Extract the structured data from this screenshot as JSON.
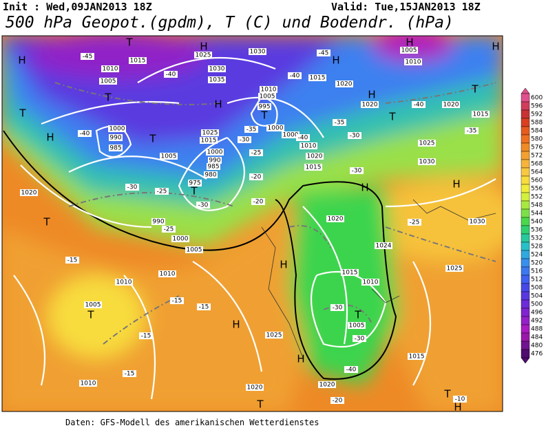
{
  "header": {
    "init": "Init : Wed,09JAN2013 18Z",
    "valid": "Valid: Tue,15JAN2013 18Z",
    "title": "500 hPa Geopot.(gpdm), T (C) und Bodendr. (hPa)"
  },
  "colorbar": {
    "levels": [
      {
        "value": 600,
        "color": "#e0508c"
      },
      {
        "value": 596,
        "color": "#d03c5a"
      },
      {
        "value": 592,
        "color": "#c83232"
      },
      {
        "value": 588,
        "color": "#d94020"
      },
      {
        "value": 584,
        "color": "#e65a1e"
      },
      {
        "value": 580,
        "color": "#ee7020"
      },
      {
        "value": 576,
        "color": "#f08a24"
      },
      {
        "value": 572,
        "color": "#f4a030"
      },
      {
        "value": 568,
        "color": "#f6b43a"
      },
      {
        "value": 564,
        "color": "#f8c840"
      },
      {
        "value": 560,
        "color": "#f8dc3e"
      },
      {
        "value": 556,
        "color": "#f0ec3a"
      },
      {
        "value": 552,
        "color": "#d2f03c"
      },
      {
        "value": 548,
        "color": "#a8e840"
      },
      {
        "value": 544,
        "color": "#7ce048"
      },
      {
        "value": 540,
        "color": "#4cd84c"
      },
      {
        "value": 536,
        "color": "#30d070"
      },
      {
        "value": 532,
        "color": "#28c89c"
      },
      {
        "value": 528,
        "color": "#28c0c8"
      },
      {
        "value": 524,
        "color": "#30a8e0"
      },
      {
        "value": 520,
        "color": "#3890ec"
      },
      {
        "value": 516,
        "color": "#3c78f0"
      },
      {
        "value": 512,
        "color": "#4060f0"
      },
      {
        "value": 508,
        "color": "#4848e8"
      },
      {
        "value": 504,
        "color": "#5838e0"
      },
      {
        "value": 500,
        "color": "#6c2cd8"
      },
      {
        "value": 496,
        "color": "#8024d0"
      },
      {
        "value": 492,
        "color": "#9420c8"
      },
      {
        "value": 488,
        "color": "#a81cc0"
      },
      {
        "value": 484,
        "color": "#9818a8"
      },
      {
        "value": 480,
        "color": "#701490"
      },
      {
        "value": 476,
        "color": "#500c70"
      }
    ]
  },
  "map": {
    "labels": [
      "H",
      "T",
      "H",
      "1025",
      "1030",
      "-45",
      "1015",
      "1010",
      "-40",
      "1005",
      "T",
      "1030",
      "1035",
      "H",
      "1010",
      "1005",
      "995",
      "T",
      "-40",
      "1015",
      "1020",
      "H",
      "-45",
      "H",
      "1005",
      "1010",
      "H",
      "T",
      "H",
      "1020",
      "T",
      "-40",
      "1020",
      "1015",
      "-35",
      "-35",
      "T",
      "H",
      "-40",
      "1000",
      "990",
      "985",
      "T",
      "1025",
      "1015",
      "1000",
      "1000",
      "-35",
      "-30",
      "1010",
      "-40",
      "-30",
      "1025",
      "1005",
      "1000",
      "-25",
      "990",
      "985",
      "1020",
      "1015",
      "-20",
      "980",
      "-30",
      "1030",
      "975",
      "T",
      "-25",
      "-30",
      "H",
      "H",
      "1020",
      "-30",
      "-20",
      "1020",
      "-25",
      "1030",
      "T",
      "990",
      "-25",
      "1000",
      "1024",
      "1005",
      "-15",
      "H",
      "1010",
      "1015",
      "1010",
      "1025",
      "1010",
      "-15",
      "1005",
      "T",
      "-30",
      "T",
      "1005",
      "-15",
      "H",
      "1025",
      "-15",
      "-30",
      "H",
      "1015",
      "-40",
      "-15",
      "1010",
      "1020",
      "1020",
      "-20",
      "T",
      "T",
      "-10",
      "H"
    ]
  },
  "footer": "Daten: GFS-Modell des amerikanischen Wetterdienstes"
}
